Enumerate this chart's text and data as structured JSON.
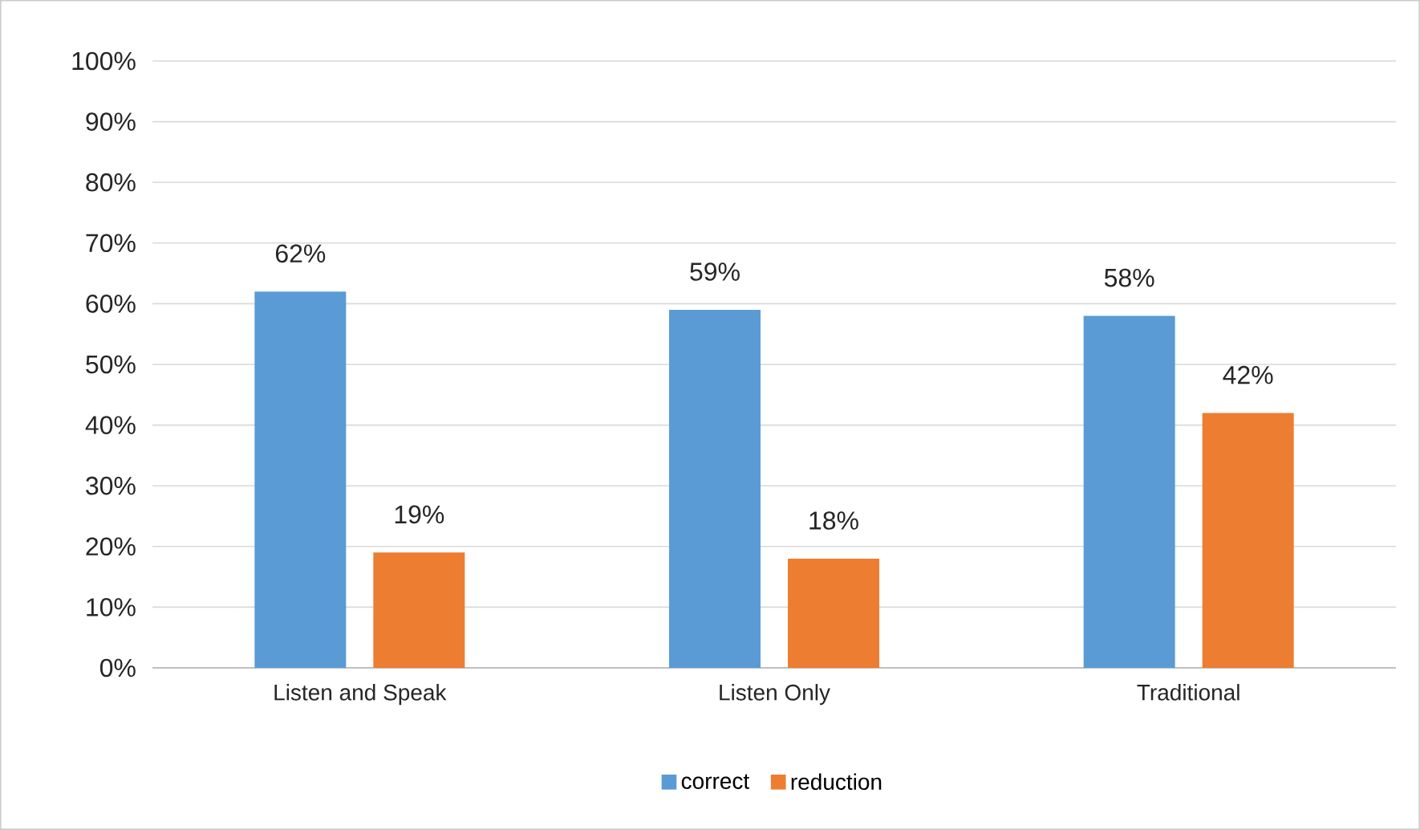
{
  "chart_data": {
    "type": "bar",
    "categories": [
      "Listen and Speak",
      "Listen Only",
      "Traditional"
    ],
    "series": [
      {
        "name": "correct",
        "color": "#5b9bd5",
        "values": [
          62,
          59,
          58
        ],
        "value_labels": [
          "62%",
          "59%",
          "58%"
        ]
      },
      {
        "name": "reduction",
        "color": "#ed7d31",
        "values": [
          19,
          18,
          42
        ],
        "value_labels": [
          "19%",
          "18%",
          "42%"
        ]
      }
    ],
    "ylim": [
      0,
      100
    ],
    "yticks": [
      {
        "value": 0,
        "label": "0%"
      },
      {
        "value": 10,
        "label": "10%"
      },
      {
        "value": 20,
        "label": "20%"
      },
      {
        "value": 30,
        "label": "30%"
      },
      {
        "value": 40,
        "label": "40%"
      },
      {
        "value": 50,
        "label": "50%"
      },
      {
        "value": 60,
        "label": "60%"
      },
      {
        "value": 70,
        "label": "70%"
      },
      {
        "value": 80,
        "label": "80%"
      },
      {
        "value": 90,
        "label": "90%"
      },
      {
        "value": 100,
        "label": "100%"
      }
    ],
    "grid": "y",
    "legend": "bottom"
  }
}
